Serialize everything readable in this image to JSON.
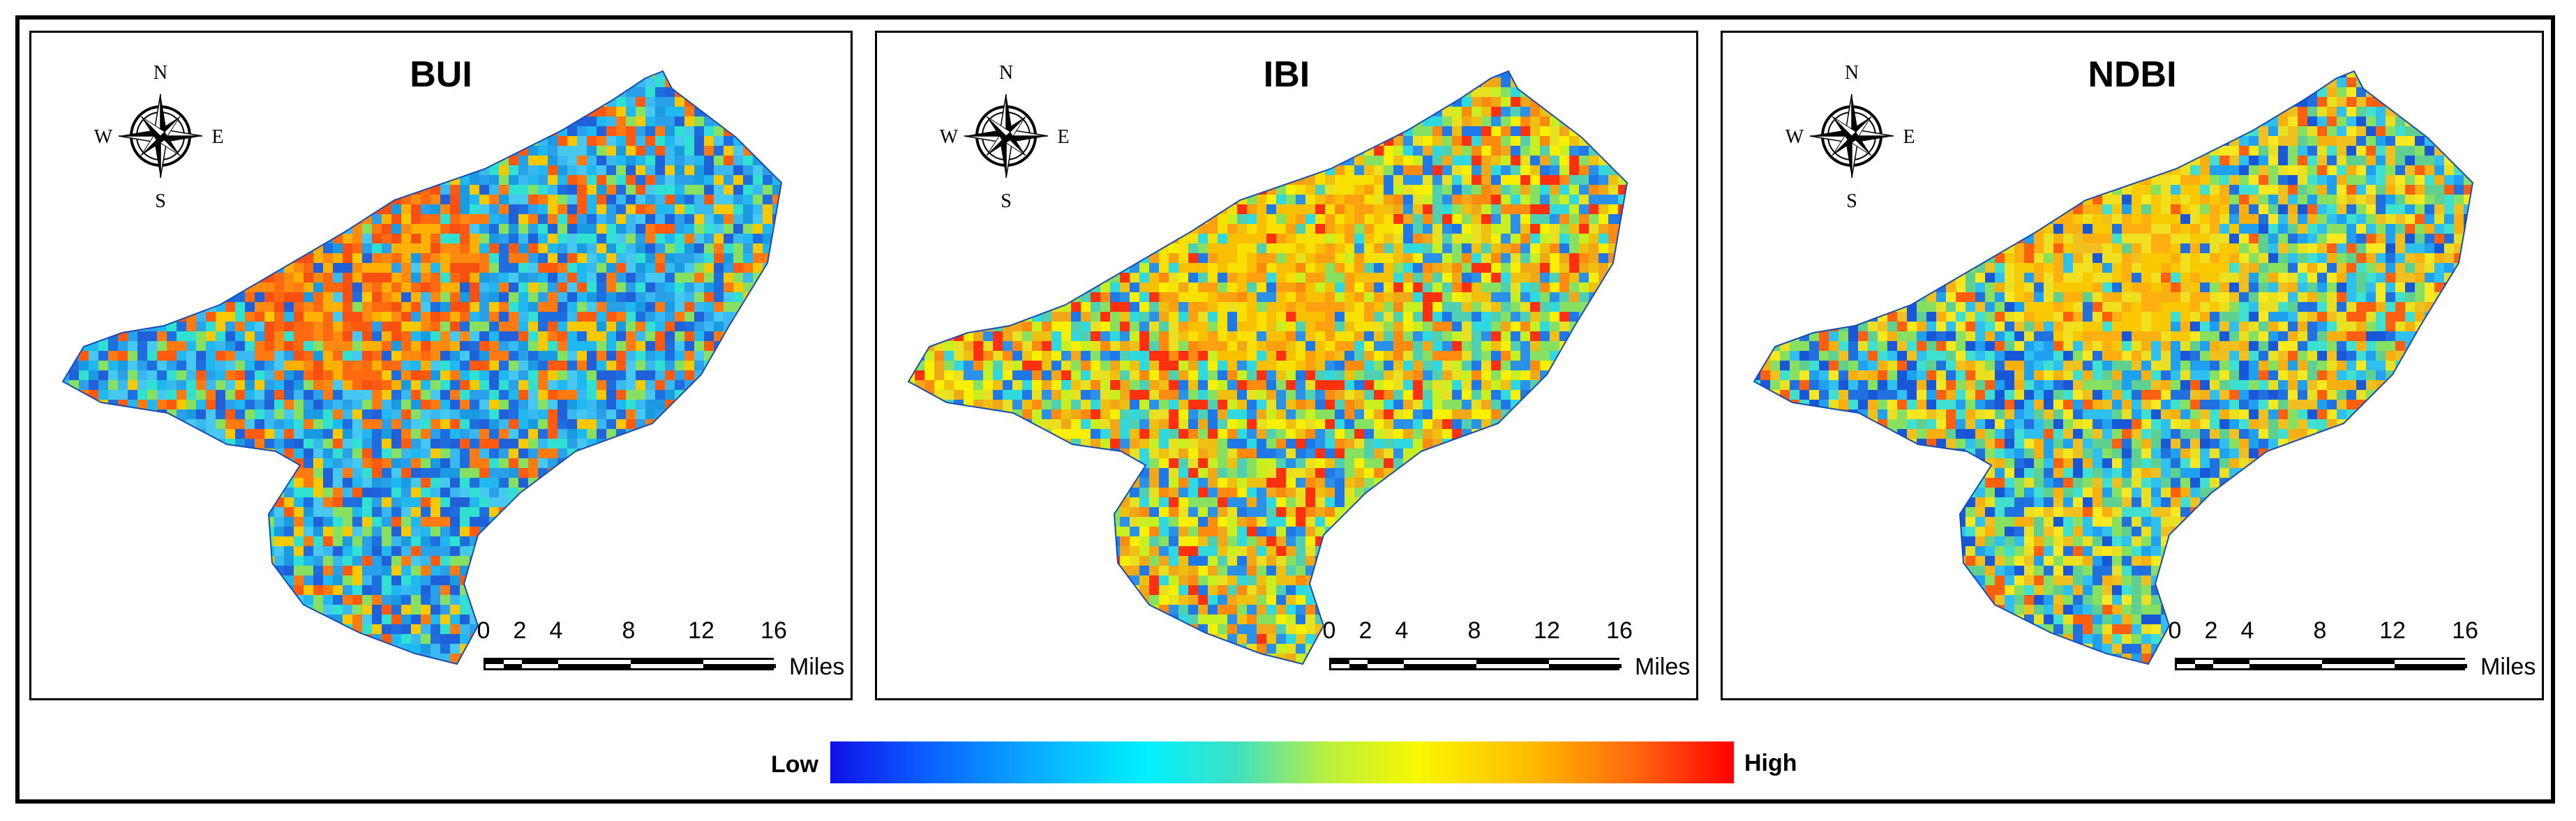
{
  "panels": [
    {
      "title": "BUI",
      "palette": [
        "#2aa0e8",
        "#46c8f0",
        "#1e6ee0",
        "#ff7a10",
        "#ff5a10",
        "#f8c800",
        "#30e0d0",
        "#1a9ae0",
        "#3ab8f0",
        "#88e060",
        "#2060d8",
        "#20b8f0"
      ]
    },
    {
      "title": "IBI",
      "palette": [
        "#e8e020",
        "#f0c010",
        "#88e060",
        "#30d8e0",
        "#2a90e8",
        "#ff8a10",
        "#f8f000",
        "#50d0b0",
        "#ff3010",
        "#1f78e8",
        "#c8f020",
        "#f0a818"
      ]
    },
    {
      "title": "NDBI",
      "palette": [
        "#30c0f0",
        "#e8e020",
        "#f8b010",
        "#88e060",
        "#2070e0",
        "#40e0d0",
        "#1fa0f0",
        "#ff6010",
        "#f8e820",
        "#1858d8",
        "#60d090",
        "#f0c020"
      ]
    }
  ],
  "compass": {
    "north": "N",
    "south": "S",
    "east": "E",
    "west": "W"
  },
  "scale": {
    "ticks": [
      "0",
      "2",
      "4",
      "8",
      "12",
      "16"
    ],
    "units": "Miles"
  },
  "legend": {
    "low": "Low",
    "high": "High"
  }
}
